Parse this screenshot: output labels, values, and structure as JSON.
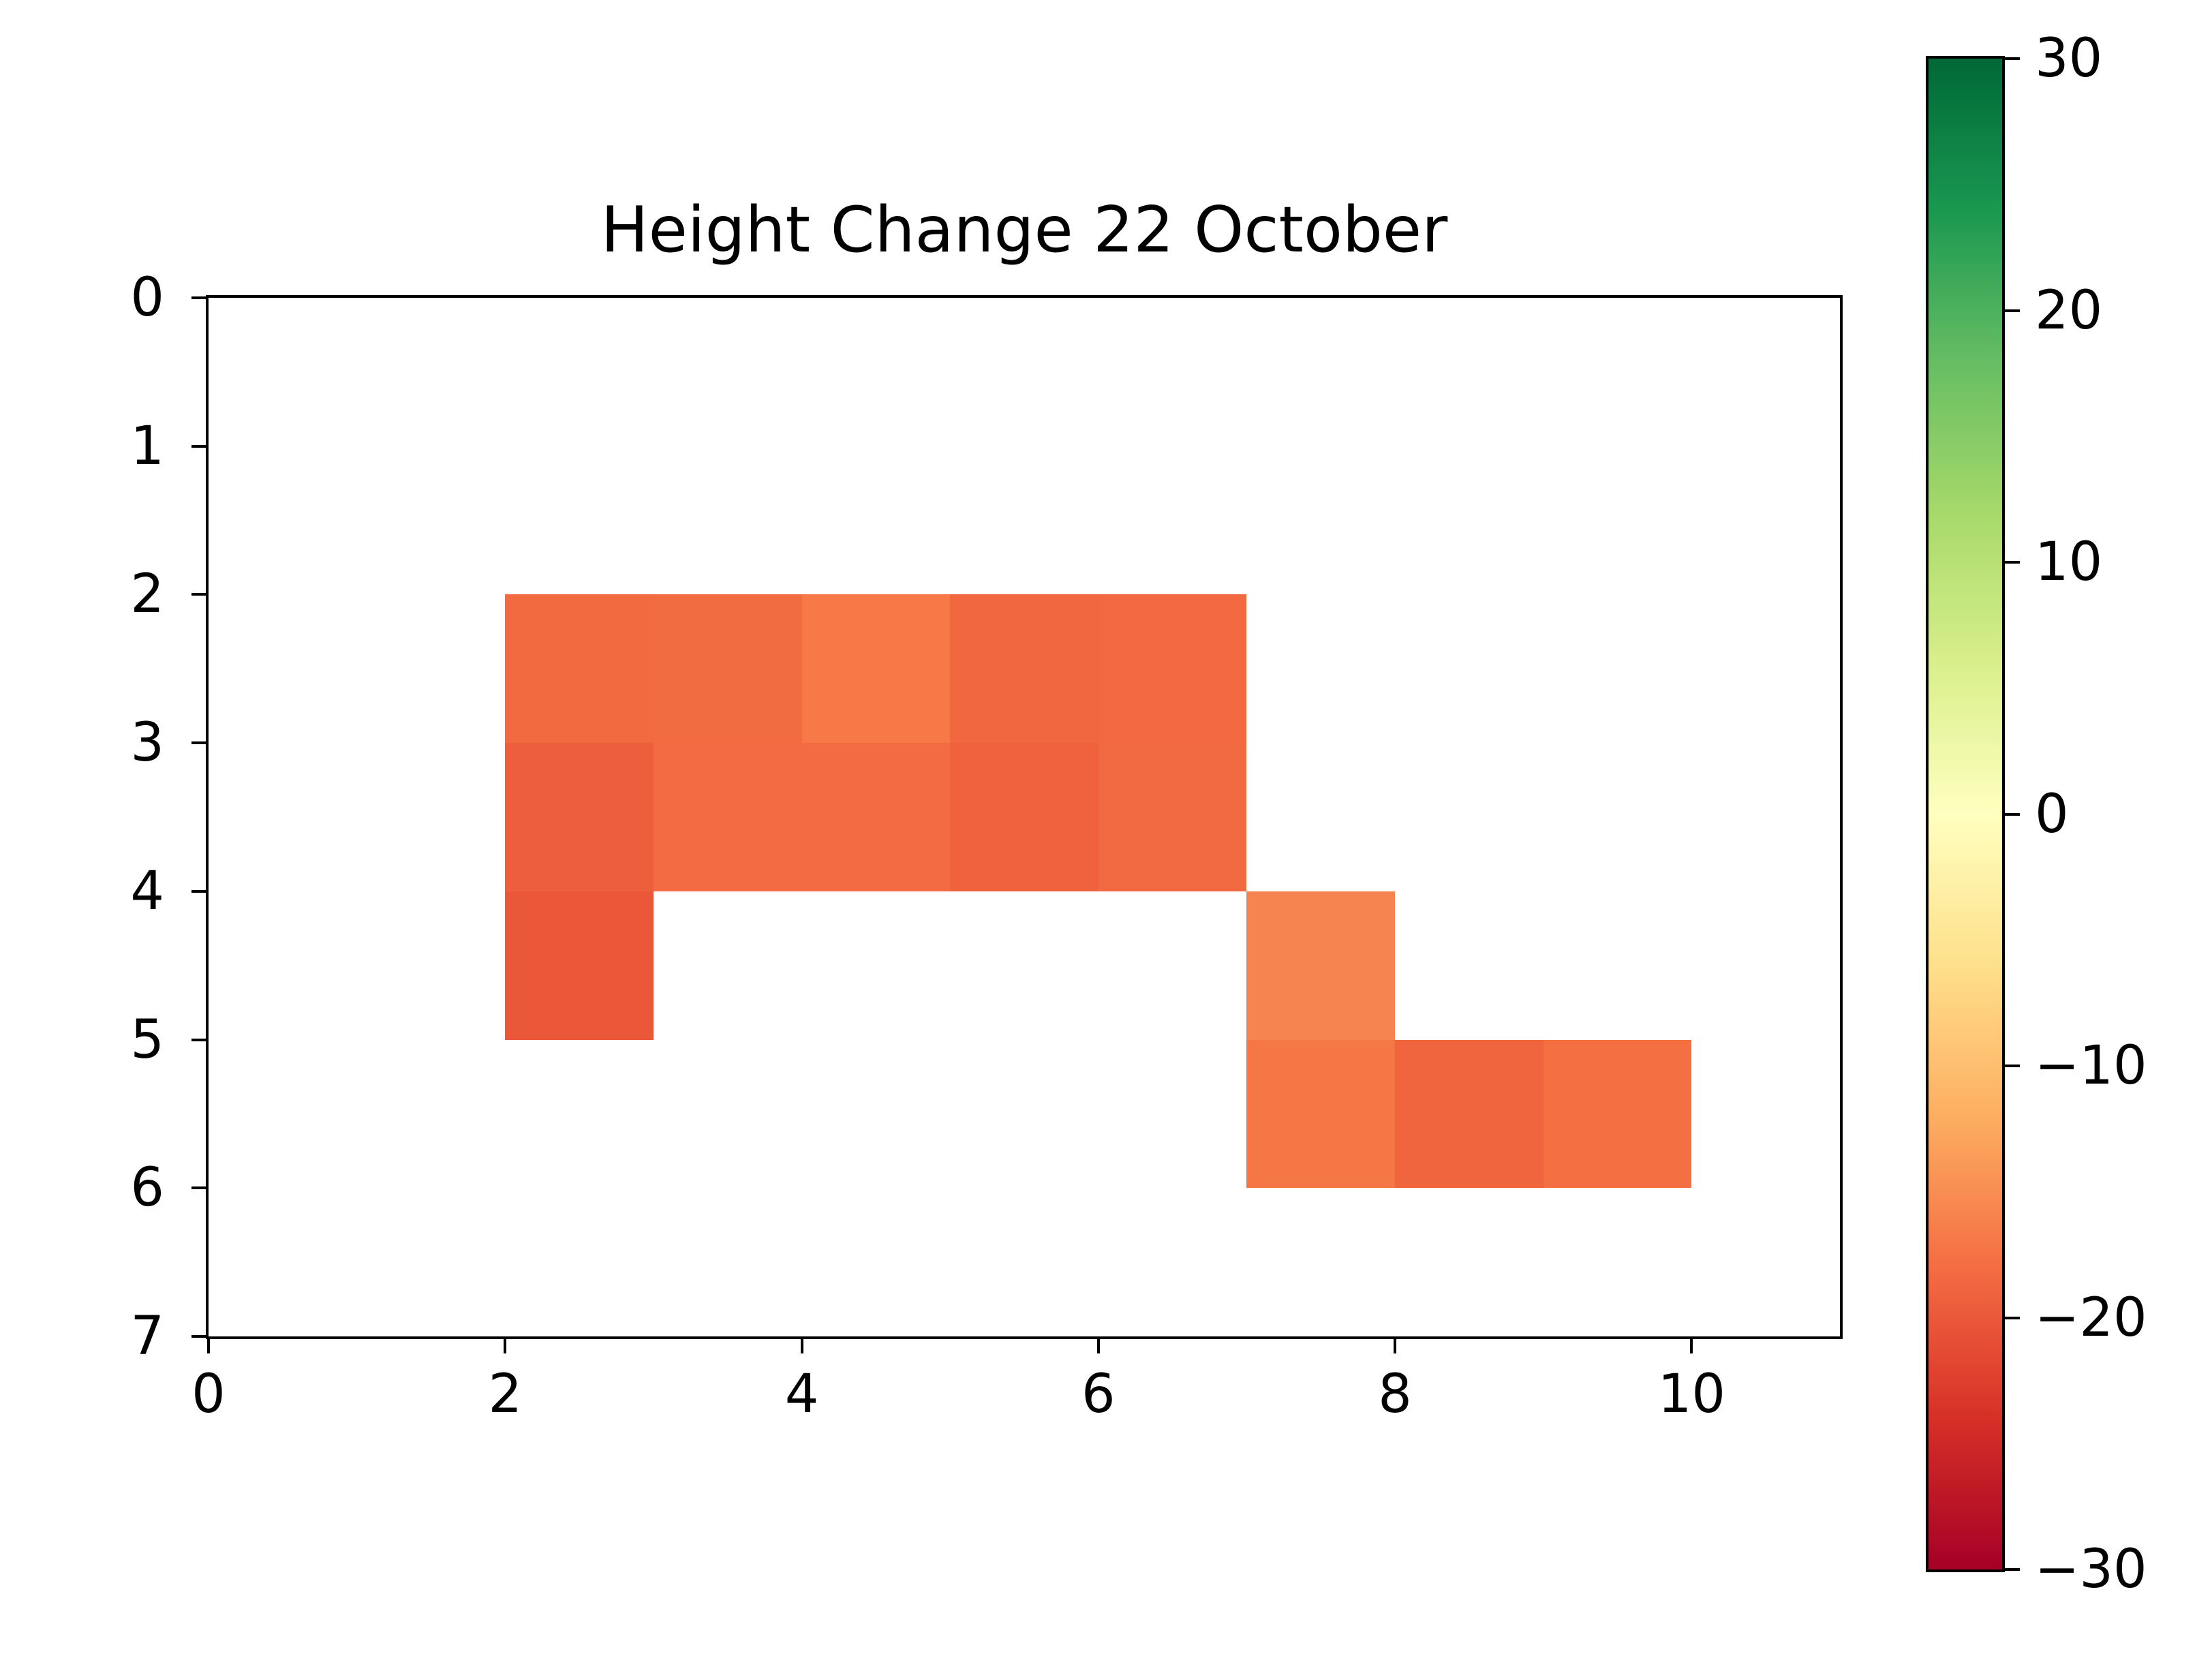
{
  "title": "Height Change 22 October",
  "chart_data": {
    "type": "heatmap",
    "title": "Height Change 22 October",
    "xlabel": "",
    "ylabel": "",
    "xlim": [
      0,
      11
    ],
    "ylim": [
      7,
      0
    ],
    "y_axis_inverted": true,
    "grid": false,
    "x_ticks": [
      0,
      2,
      4,
      6,
      8,
      10
    ],
    "x_tick_labels": [
      "0",
      "2",
      "4",
      "6",
      "8",
      "10"
    ],
    "y_ticks": [
      0,
      1,
      2,
      3,
      4,
      5,
      6,
      7
    ],
    "y_tick_labels": [
      "0",
      "1",
      "2",
      "3",
      "4",
      "5",
      "6",
      "7"
    ],
    "background_color": "#ffffff",
    "cells": [
      {
        "row": 2,
        "col": 2,
        "value": -18.3,
        "color": "#f26a40"
      },
      {
        "row": 2,
        "col": 3,
        "value": -18.1,
        "color": "#f26c42"
      },
      {
        "row": 2,
        "col": 4,
        "value": -16.7,
        "color": "#f67947"
      },
      {
        "row": 2,
        "col": 5,
        "value": -18.7,
        "color": "#f16740"
      },
      {
        "row": 2,
        "col": 6,
        "value": -18.5,
        "color": "#f16841"
      },
      {
        "row": 3,
        "col": 2,
        "value": -19.8,
        "color": "#ed5e3d"
      },
      {
        "row": 3,
        "col": 3,
        "value": -18.2,
        "color": "#f26b42"
      },
      {
        "row": 3,
        "col": 4,
        "value": -18.2,
        "color": "#f26b42"
      },
      {
        "row": 3,
        "col": 5,
        "value": -19.3,
        "color": "#ef623d"
      },
      {
        "row": 3,
        "col": 6,
        "value": -18.4,
        "color": "#f16941"
      },
      {
        "row": 4,
        "col": 2,
        "value": -20.3,
        "color": "#eb5839"
      },
      {
        "row": 4,
        "col": 7,
        "value": -15.8,
        "color": "#f68450"
      },
      {
        "row": 5,
        "col": 7,
        "value": -16.9,
        "color": "#f57746"
      },
      {
        "row": 5,
        "col": 8,
        "value": -18.9,
        "color": "#f1653e"
      },
      {
        "row": 5,
        "col": 9,
        "value": -17.4,
        "color": "#f47042"
      }
    ],
    "colorbar": {
      "colormap": "RdYlGn",
      "vmin": -30,
      "vmax": 30,
      "ticks": [
        30,
        20,
        10,
        0,
        -10,
        -20,
        -30
      ],
      "tick_labels": [
        "30",
        "20",
        "10",
        "0",
        "−10",
        "−20",
        "−30"
      ],
      "gradient_stops": [
        {
          "pos": 0.0,
          "color": "#a50026"
        },
        {
          "pos": 0.1,
          "color": "#d73027"
        },
        {
          "pos": 0.2,
          "color": "#f46d43"
        },
        {
          "pos": 0.3,
          "color": "#fdae61"
        },
        {
          "pos": 0.4,
          "color": "#fee08b"
        },
        {
          "pos": 0.5,
          "color": "#ffffbf"
        },
        {
          "pos": 0.6,
          "color": "#d9ef8b"
        },
        {
          "pos": 0.7,
          "color": "#a6d96a"
        },
        {
          "pos": 0.8,
          "color": "#66bd63"
        },
        {
          "pos": 0.9,
          "color": "#1a9850"
        },
        {
          "pos": 1.0,
          "color": "#006837"
        }
      ]
    }
  }
}
